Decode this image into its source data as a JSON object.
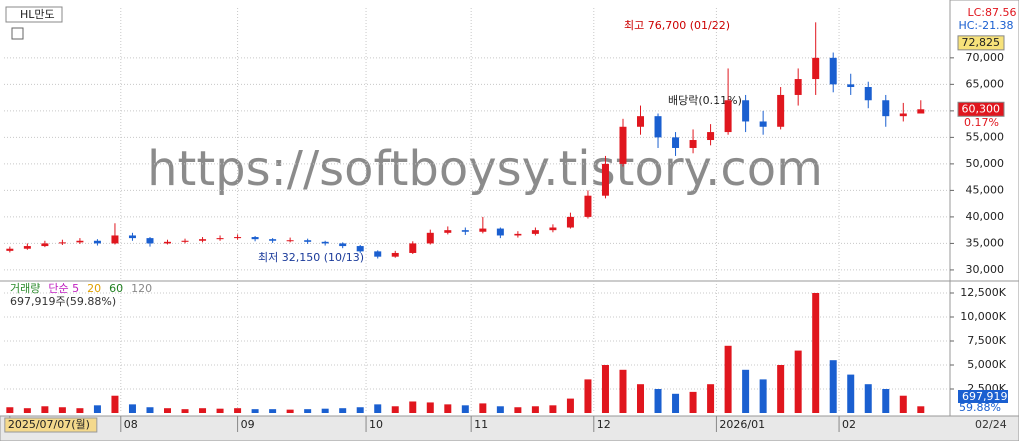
{
  "chart_data": {
    "type": "candlestick",
    "title": "HL만도",
    "watermark": "https://softboysy.tistory.com",
    "x": [
      0,
      3,
      6,
      9,
      12,
      15,
      18,
      21,
      24,
      27,
      30,
      33,
      36,
      39,
      42,
      45,
      48,
      51,
      54,
      57,
      60,
      63,
      66,
      69,
      72,
      75,
      78,
      81,
      84,
      87,
      90,
      93,
      96,
      99,
      102,
      105,
      108,
      111,
      114,
      117,
      120,
      123,
      126,
      129,
      132,
      135,
      138,
      141,
      144,
      147,
      150,
      153,
      156
    ],
    "open": [
      33600,
      34000,
      34500,
      35000,
      35200,
      35500,
      35000,
      36500,
      36000,
      35000,
      35300,
      35500,
      35800,
      36000,
      36200,
      35800,
      35500,
      35600,
      35300,
      35000,
      34500,
      33500,
      32500,
      33200,
      35000,
      37000,
      37500,
      37200,
      37800,
      36500,
      36800,
      37500,
      38000,
      40000,
      44000,
      50000,
      57000,
      59000,
      55000,
      53000,
      54500,
      56000,
      62000,
      58000,
      57000,
      63000,
      66000,
      70000,
      65000,
      64500,
      62000,
      59000,
      59500
    ],
    "high": [
      34400,
      35000,
      35500,
      35700,
      36000,
      35800,
      38800,
      37000,
      36200,
      35700,
      35900,
      36200,
      36500,
      36700,
      36400,
      36000,
      36100,
      35900,
      35500,
      35200,
      34700,
      33700,
      33600,
      35400,
      37600,
      38200,
      38000,
      40000,
      38000,
      37300,
      38000,
      38600,
      40800,
      45000,
      51500,
      58500,
      61000,
      59500,
      56000,
      56500,
      57500,
      68000,
      63000,
      60000,
      64500,
      68000,
      76700,
      71000,
      67000,
      65500,
      63000,
      61500,
      62000
    ],
    "low": [
      33300,
      33800,
      34300,
      34700,
      34900,
      34600,
      34800,
      35500,
      34400,
      34800,
      35000,
      35200,
      35500,
      35700,
      35400,
      35100,
      35200,
      34900,
      34600,
      34100,
      33200,
      32150,
      32300,
      33000,
      34800,
      36700,
      36600,
      36900,
      36000,
      36100,
      36500,
      37100,
      37800,
      39700,
      43500,
      49500,
      55500,
      53000,
      51500,
      52000,
      53500,
      55500,
      56000,
      55500,
      56500,
      61000,
      63000,
      63500,
      63000,
      60500,
      57000,
      58000,
      59500
    ],
    "close": [
      34000,
      34500,
      35000,
      35200,
      35500,
      35000,
      36500,
      36000,
      35000,
      35300,
      35500,
      35800,
      36000,
      36200,
      35800,
      35500,
      35600,
      35300,
      35000,
      34500,
      33500,
      32500,
      33200,
      35000,
      37000,
      37500,
      37200,
      37800,
      36500,
      36800,
      37500,
      38000,
      40000,
      44000,
      50000,
      57000,
      59000,
      55000,
      53000,
      54500,
      56000,
      62000,
      58000,
      57000,
      63000,
      66000,
      70000,
      65000,
      64500,
      62000,
      59000,
      59500,
      60300
    ],
    "volume": [
      600,
      500,
      700,
      600,
      500,
      800,
      1800,
      900,
      600,
      500,
      400,
      500,
      450,
      500,
      400,
      400,
      350,
      400,
      450,
      500,
      600,
      900,
      700,
      1200,
      1100,
      900,
      800,
      1000,
      700,
      600,
      700,
      800,
      1500,
      3500,
      5000,
      4500,
      3000,
      2500,
      2000,
      2200,
      3000,
      7000,
      4500,
      3500,
      5000,
      6500,
      12500,
      5500,
      4000,
      3000,
      2500,
      1800,
      697.919
    ],
    "up_color": "#e0161e",
    "down_color": "#1a5fd0",
    "xlim": [
      -1,
      161
    ],
    "xticks": [
      {
        "value": 0,
        "label": "2025/07/07(월)"
      },
      {
        "value": 19,
        "label": "08"
      },
      {
        "value": 39,
        "label": "09"
      },
      {
        "value": 61,
        "label": "10"
      },
      {
        "value": 79,
        "label": "11"
      },
      {
        "value": 100,
        "label": "12"
      },
      {
        "value": 121,
        "label": "2026/01"
      },
      {
        "value": 142,
        "label": "02"
      }
    ],
    "last_date": "02/24",
    "ylim": [
      28100,
      79400
    ],
    "yticks": [
      {
        "value": 30000,
        "label": "30,000"
      },
      {
        "value": 35000,
        "label": "35,000"
      },
      {
        "value": 40000,
        "label": "40,000"
      },
      {
        "value": 45000,
        "label": "45,000"
      },
      {
        "value": 50000,
        "label": "50,000"
      },
      {
        "value": 55000,
        "label": "55,000"
      },
      {
        "value": 60000,
        "label": "60,000"
      },
      {
        "value": 65000,
        "label": "65,000"
      },
      {
        "value": 70000,
        "label": "70,000"
      }
    ],
    "vol_ylim": [
      0,
      13540
    ],
    "vol_yticks": [
      {
        "value": 2500,
        "label": "2,500K"
      },
      {
        "value": 5000,
        "label": "5,000K"
      },
      {
        "value": 7500,
        "label": "7,500K"
      },
      {
        "value": 10000,
        "label": "10,000K"
      },
      {
        "value": 12500,
        "label": "12,500K"
      }
    ],
    "price_tags": [
      {
        "value": 72825,
        "label": "72,825"
      },
      {
        "value": 60300,
        "label": "60,300"
      }
    ],
    "change_label": "0.17%",
    "lc_label": "LC:87.56",
    "hc_label": "HC:-21.38",
    "annotations": {
      "high": "최고 76,700 (01/22)",
      "low": "최저 32,150 (10/13)",
      "dividend": "배당락(0.11%)"
    },
    "volume_legend": [
      "거래량",
      "단순 5",
      "20",
      "60",
      "120"
    ],
    "volume_info": "697,919주(59.88%)",
    "volume_tag": "697,919",
    "volume_ratio": "59.88%",
    "grid": true
  }
}
